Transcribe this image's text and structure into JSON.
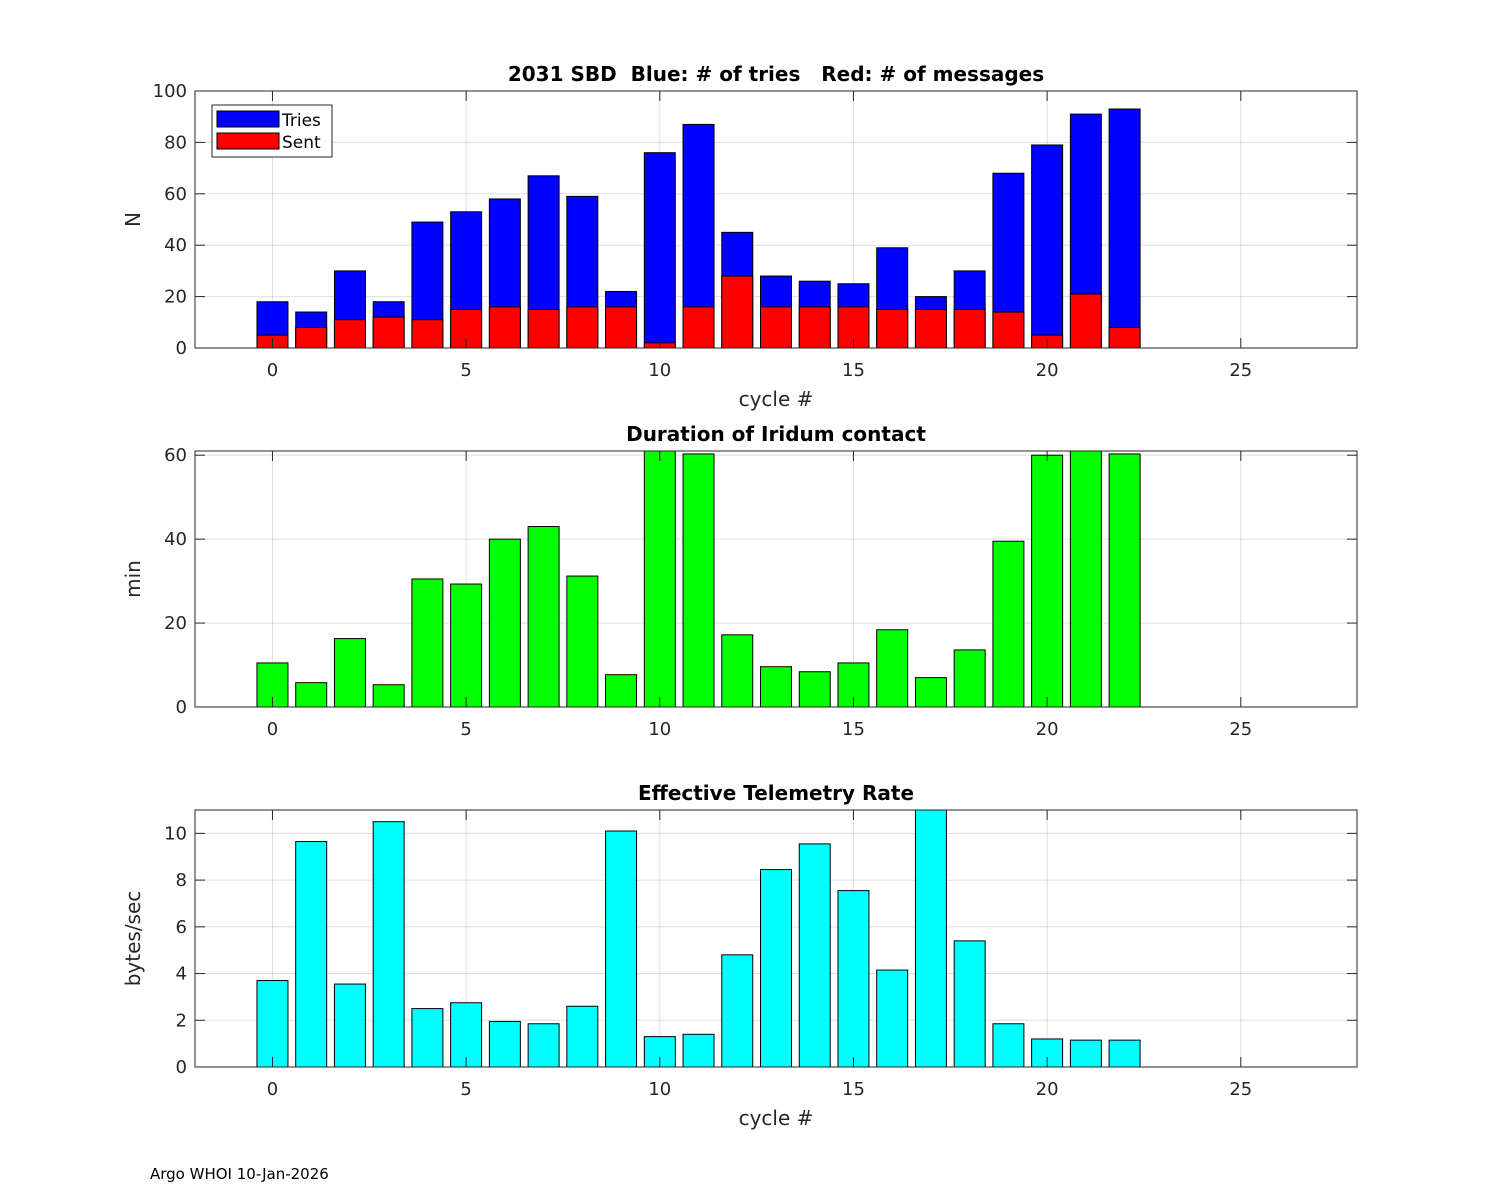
{
  "footer": "Argo WHOI 10-Jan-2026",
  "colors": {
    "tries": "#0000ff",
    "sent": "#ff0000",
    "duration": "#00ff00",
    "rate": "#00ffff"
  },
  "chart_data": [
    {
      "type": "bar",
      "stacked": "overlay",
      "title": "2031 SBD  Blue: # of tries   Red: # of messages",
      "xlabel": "cycle #",
      "ylabel": "N",
      "xlim": [
        -2,
        28
      ],
      "ylim": [
        0,
        100
      ],
      "xticks": [
        0,
        5,
        10,
        15,
        20,
        25
      ],
      "yticks": [
        0,
        20,
        40,
        60,
        80,
        100
      ],
      "grid": true,
      "legend_position": "top-left",
      "x": [
        0,
        1,
        2,
        3,
        4,
        5,
        6,
        7,
        8,
        9,
        10,
        11,
        12,
        13,
        14,
        15,
        16,
        17,
        18,
        19,
        20,
        21,
        22
      ],
      "series": [
        {
          "name": "Tries",
          "color_key": "tries",
          "values": [
            18,
            14,
            30,
            18,
            49,
            53,
            58,
            67,
            59,
            22,
            76,
            87,
            45,
            28,
            26,
            25,
            39,
            20,
            30,
            68,
            79,
            91,
            93
          ]
        },
        {
          "name": "Sent",
          "color_key": "sent",
          "values": [
            5,
            8,
            11,
            12,
            11,
            15,
            16,
            15,
            16,
            16,
            2,
            16,
            28,
            16,
            16,
            16,
            15,
            15,
            15,
            14,
            5,
            21,
            8
          ]
        }
      ]
    },
    {
      "type": "bar",
      "title": "Duration of Iridum contact",
      "xlabel": "",
      "ylabel": "min",
      "xlim": [
        -2,
        28
      ],
      "ylim": [
        0,
        61
      ],
      "xticks": [
        0,
        5,
        10,
        15,
        20,
        25
      ],
      "yticks": [
        0,
        20,
        40,
        60
      ],
      "grid": true,
      "x": [
        0,
        1,
        2,
        3,
        4,
        5,
        6,
        7,
        8,
        9,
        10,
        11,
        12,
        13,
        14,
        15,
        16,
        17,
        18,
        19,
        20,
        21,
        22
      ],
      "series": [
        {
          "name": "Duration",
          "color_key": "duration",
          "values": [
            10.5,
            5.8,
            16.3,
            5.3,
            30.5,
            29.3,
            40,
            43,
            31.2,
            7.7,
            61,
            60.3,
            17.2,
            9.6,
            8.4,
            10.5,
            18.4,
            7,
            13.6,
            39.5,
            60,
            61,
            60.3
          ]
        }
      ]
    },
    {
      "type": "bar",
      "title": "Effective Telemetry Rate",
      "xlabel": "cycle #",
      "ylabel": "bytes/sec",
      "xlim": [
        -2,
        28
      ],
      "ylim": [
        0,
        11
      ],
      "xticks": [
        0,
        5,
        10,
        15,
        20,
        25
      ],
      "yticks": [
        0,
        2,
        4,
        6,
        8,
        10
      ],
      "grid": true,
      "x": [
        0,
        1,
        2,
        3,
        4,
        5,
        6,
        7,
        8,
        9,
        10,
        11,
        12,
        13,
        14,
        15,
        16,
        17,
        18,
        19,
        20,
        21,
        22
      ],
      "series": [
        {
          "name": "Rate",
          "color_key": "rate",
          "values": [
            3.7,
            9.65,
            3.55,
            10.5,
            2.5,
            2.75,
            1.95,
            1.85,
            2.6,
            10.1,
            1.3,
            1.4,
            4.8,
            8.45,
            9.55,
            7.55,
            4.15,
            11,
            5.4,
            1.85,
            1.2,
            1.15,
            1.15
          ]
        }
      ]
    }
  ]
}
